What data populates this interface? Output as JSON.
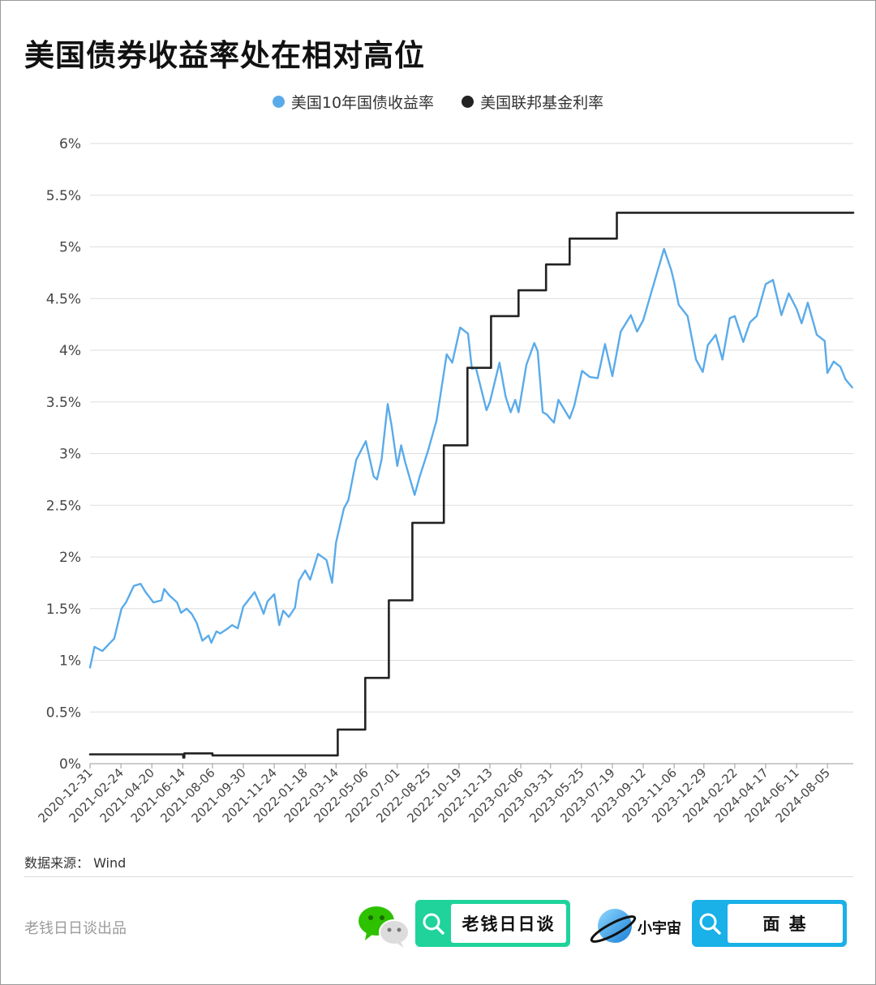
{
  "title": "美国债券收益率处在相对高位",
  "footer": {
    "source": "数据来源： Wind",
    "producer": "老钱日日谈出品",
    "badge_wechat": "老钱日日谈",
    "planet_label": "小宇宙",
    "badge_mianji": "面 基"
  },
  "colors": {
    "yield_line": "#5aabea",
    "fed_line": "#222222",
    "grid": "#dddddd",
    "badge1": "#1fd39a",
    "badge2": "#1ab0e8"
  },
  "chart_data": {
    "type": "line",
    "title": "美国债券收益率处在相对高位",
    "xlabel": "",
    "ylabel": "",
    "ylim": [
      0,
      6
    ],
    "y_ticks": [
      "0%",
      "0.5%",
      "1%",
      "1.5%",
      "2%",
      "2.5%",
      "3%",
      "3.5%",
      "4%",
      "4.5%",
      "5%",
      "5.5%",
      "6%"
    ],
    "y_tick_values": [
      0,
      0.5,
      1,
      1.5,
      2,
      2.5,
      3,
      3.5,
      4,
      4.5,
      5,
      5.5,
      6
    ],
    "x_range": [
      "2020-12-31",
      "2024-09-20"
    ],
    "x_ticks": [
      "2020-12-31",
      "2021-02-24",
      "2021-04-20",
      "2021-06-14",
      "2021-08-06",
      "2021-09-30",
      "2021-11-24",
      "2022-01-18",
      "2022-03-14",
      "2022-05-06",
      "2022-07-01",
      "2022-08-25",
      "2022-10-19",
      "2022-12-13",
      "2023-02-06",
      "2023-03-31",
      "2023-05-25",
      "2023-07-19",
      "2023-09-12",
      "2023-11-06",
      "2023-12-29",
      "2024-02-22",
      "2024-04-17",
      "2024-06-11",
      "2024-08-05"
    ],
    "grid": true,
    "legend_position": "top-center",
    "series": [
      {
        "name": "美国10年国债收益率",
        "color": "#5aabea",
        "points": [
          [
            "2020-12-31",
            0.93
          ],
          [
            "2021-01-08",
            1.13
          ],
          [
            "2021-01-22",
            1.09
          ],
          [
            "2021-02-05",
            1.17
          ],
          [
            "2021-02-12",
            1.21
          ],
          [
            "2021-02-25",
            1.5
          ],
          [
            "2021-03-05",
            1.56
          ],
          [
            "2021-03-19",
            1.72
          ],
          [
            "2021-03-31",
            1.74
          ],
          [
            "2021-04-09",
            1.66
          ],
          [
            "2021-04-23",
            1.56
          ],
          [
            "2021-05-07",
            1.58
          ],
          [
            "2021-05-12",
            1.69
          ],
          [
            "2021-05-21",
            1.63
          ],
          [
            "2021-06-04",
            1.56
          ],
          [
            "2021-06-11",
            1.46
          ],
          [
            "2021-06-21",
            1.5
          ],
          [
            "2021-06-30",
            1.45
          ],
          [
            "2021-07-09",
            1.36
          ],
          [
            "2021-07-19",
            1.19
          ],
          [
            "2021-07-30",
            1.24
          ],
          [
            "2021-08-04",
            1.17
          ],
          [
            "2021-08-13",
            1.28
          ],
          [
            "2021-08-20",
            1.26
          ],
          [
            "2021-08-31",
            1.3
          ],
          [
            "2021-09-10",
            1.34
          ],
          [
            "2021-09-20",
            1.31
          ],
          [
            "2021-09-30",
            1.52
          ],
          [
            "2021-10-20",
            1.66
          ],
          [
            "2021-10-29",
            1.55
          ],
          [
            "2021-11-05",
            1.45
          ],
          [
            "2021-11-12",
            1.57
          ],
          [
            "2021-11-24",
            1.64
          ],
          [
            "2021-12-03",
            1.34
          ],
          [
            "2021-12-10",
            1.48
          ],
          [
            "2021-12-20",
            1.42
          ],
          [
            "2021-12-31",
            1.51
          ],
          [
            "2022-01-07",
            1.77
          ],
          [
            "2022-01-18",
            1.87
          ],
          [
            "2022-01-27",
            1.78
          ],
          [
            "2022-02-10",
            2.03
          ],
          [
            "2022-02-25",
            1.97
          ],
          [
            "2022-03-07",
            1.75
          ],
          [
            "2022-03-14",
            2.14
          ],
          [
            "2022-03-28",
            2.47
          ],
          [
            "2022-04-05",
            2.55
          ],
          [
            "2022-04-19",
            2.94
          ],
          [
            "2022-05-06",
            3.12
          ],
          [
            "2022-05-20",
            2.78
          ],
          [
            "2022-05-26",
            2.75
          ],
          [
            "2022-06-03",
            2.94
          ],
          [
            "2022-06-14",
            3.48
          ],
          [
            "2022-06-21",
            3.27
          ],
          [
            "2022-07-01",
            2.88
          ],
          [
            "2022-07-08",
            3.08
          ],
          [
            "2022-07-15",
            2.92
          ],
          [
            "2022-08-01",
            2.6
          ],
          [
            "2022-08-10",
            2.78
          ],
          [
            "2022-08-25",
            3.03
          ],
          [
            "2022-09-09",
            3.32
          ],
          [
            "2022-09-27",
            3.96
          ],
          [
            "2022-10-07",
            3.88
          ],
          [
            "2022-10-21",
            4.22
          ],
          [
            "2022-11-04",
            4.16
          ],
          [
            "2022-11-11",
            3.82
          ],
          [
            "2022-11-18",
            3.83
          ],
          [
            "2022-12-07",
            3.42
          ],
          [
            "2022-12-13",
            3.5
          ],
          [
            "2022-12-30",
            3.88
          ],
          [
            "2023-01-10",
            3.55
          ],
          [
            "2023-01-19",
            3.4
          ],
          [
            "2023-01-27",
            3.52
          ],
          [
            "2023-02-02",
            3.4
          ],
          [
            "2023-02-16",
            3.86
          ],
          [
            "2023-03-02",
            4.07
          ],
          [
            "2023-03-08",
            3.99
          ],
          [
            "2023-03-17",
            3.4
          ],
          [
            "2023-03-24",
            3.38
          ],
          [
            "2023-04-06",
            3.3
          ],
          [
            "2023-04-14",
            3.52
          ],
          [
            "2023-05-04",
            3.34
          ],
          [
            "2023-05-12",
            3.46
          ],
          [
            "2023-05-26",
            3.8
          ],
          [
            "2023-06-09",
            3.74
          ],
          [
            "2023-06-23",
            3.73
          ],
          [
            "2023-07-06",
            4.06
          ],
          [
            "2023-07-19",
            3.75
          ],
          [
            "2023-08-03",
            4.18
          ],
          [
            "2023-08-21",
            4.34
          ],
          [
            "2023-09-01",
            4.18
          ],
          [
            "2023-09-12",
            4.29
          ],
          [
            "2023-09-28",
            4.59
          ],
          [
            "2023-10-19",
            4.98
          ],
          [
            "2023-11-01",
            4.77
          ],
          [
            "2023-11-06",
            4.66
          ],
          [
            "2023-11-14",
            4.44
          ],
          [
            "2023-11-30",
            4.33
          ],
          [
            "2023-12-15",
            3.91
          ],
          [
            "2023-12-27",
            3.79
          ],
          [
            "2024-01-05",
            4.05
          ],
          [
            "2024-01-19",
            4.15
          ],
          [
            "2024-01-31",
            3.91
          ],
          [
            "2024-02-13",
            4.31
          ],
          [
            "2024-02-22",
            4.33
          ],
          [
            "2024-03-08",
            4.08
          ],
          [
            "2024-03-20",
            4.27
          ],
          [
            "2024-04-01",
            4.33
          ],
          [
            "2024-04-17",
            4.64
          ],
          [
            "2024-04-30",
            4.68
          ],
          [
            "2024-05-15",
            4.34
          ],
          [
            "2024-05-28",
            4.55
          ],
          [
            "2024-06-11",
            4.4
          ],
          [
            "2024-06-20",
            4.26
          ],
          [
            "2024-07-01",
            4.46
          ],
          [
            "2024-07-17",
            4.15
          ],
          [
            "2024-07-31",
            4.09
          ],
          [
            "2024-08-05",
            3.78
          ],
          [
            "2024-08-16",
            3.89
          ],
          [
            "2024-08-28",
            3.84
          ],
          [
            "2024-09-06",
            3.72
          ],
          [
            "2024-09-18",
            3.64
          ]
        ]
      },
      {
        "name": "美国联邦基金利率",
        "color": "#222222",
        "step": true,
        "points": [
          [
            "2020-12-31",
            0.09
          ],
          [
            "2021-06-15",
            0.06
          ],
          [
            "2021-06-17",
            0.1
          ],
          [
            "2021-08-06",
            0.08
          ],
          [
            "2022-03-17",
            0.33
          ],
          [
            "2022-05-05",
            0.83
          ],
          [
            "2022-06-16",
            1.58
          ],
          [
            "2022-07-28",
            2.33
          ],
          [
            "2022-09-22",
            3.08
          ],
          [
            "2022-11-03",
            3.83
          ],
          [
            "2022-12-15",
            4.33
          ],
          [
            "2023-02-02",
            4.58
          ],
          [
            "2023-03-23",
            4.83
          ],
          [
            "2023-05-04",
            5.08
          ],
          [
            "2023-07-27",
            5.33
          ],
          [
            "2024-09-20",
            5.33
          ]
        ]
      }
    ]
  }
}
